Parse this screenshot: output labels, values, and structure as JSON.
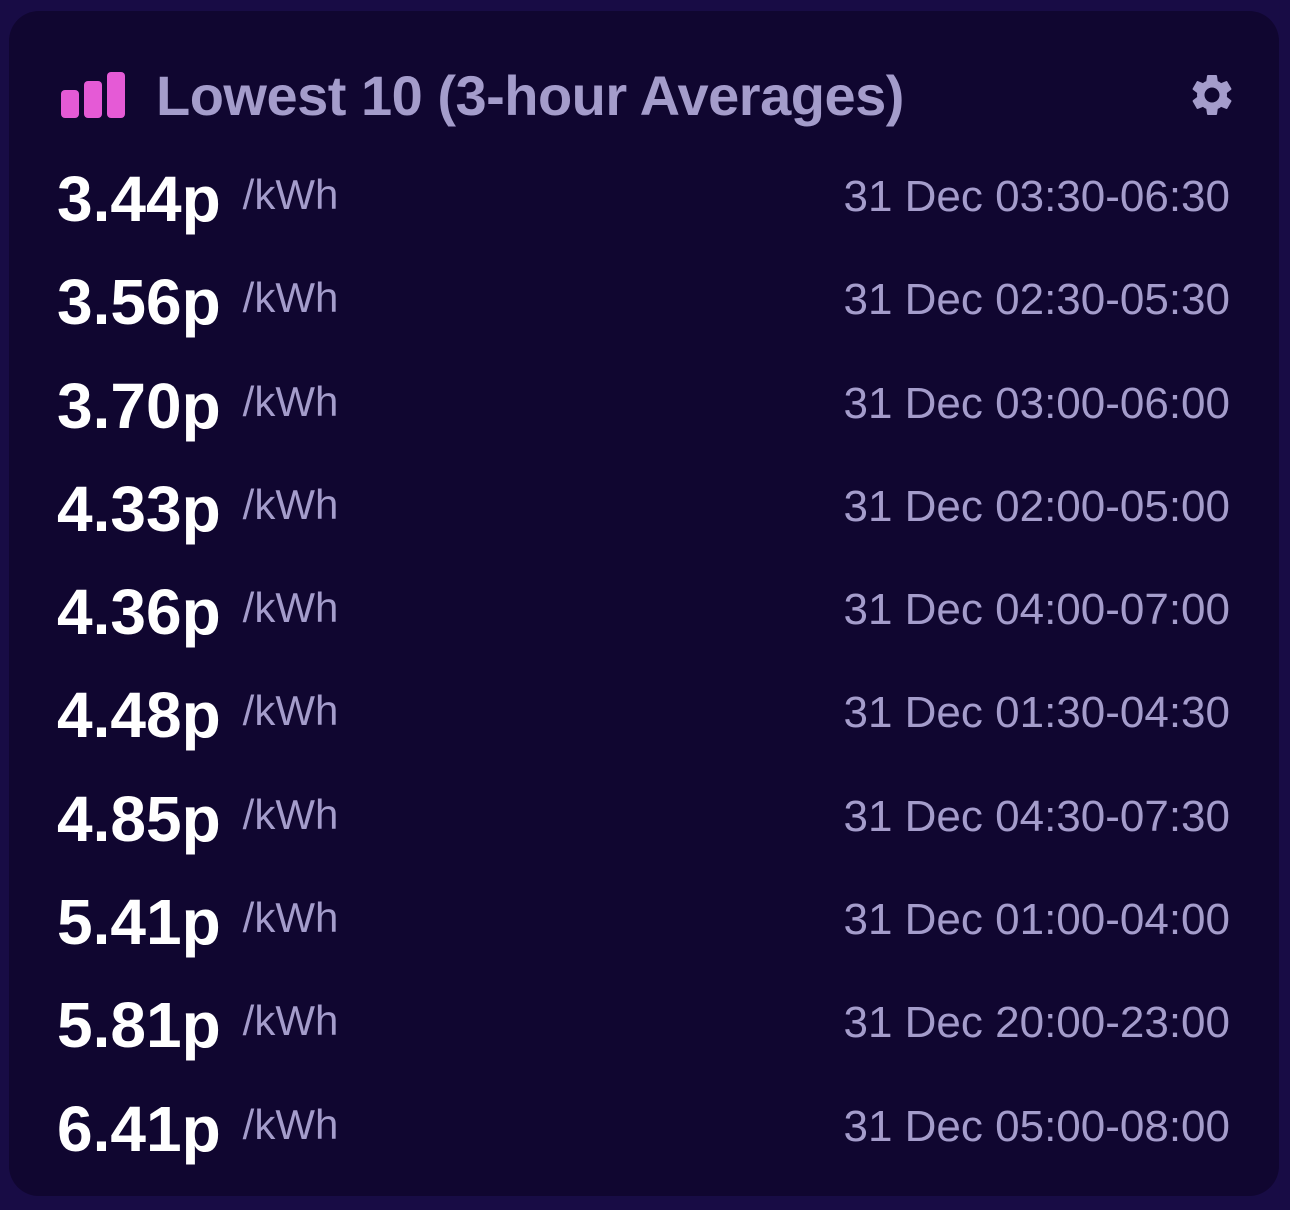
{
  "header": {
    "title": "Lowest 10 (3-hour Averages)",
    "icon": "bar-chart-icon",
    "settings_icon": "gear-icon"
  },
  "colors": {
    "background": "#180c45",
    "card": "#100630",
    "accent": "#e55ad6",
    "muted_text": "#a49ccb",
    "primary_text": "#ffffff"
  },
  "rows": [
    {
      "price": "3.44p",
      "unit": "/kWh",
      "time": "31 Dec 03:30-06:30"
    },
    {
      "price": "3.56p",
      "unit": "/kWh",
      "time": "31 Dec 02:30-05:30"
    },
    {
      "price": "3.70p",
      "unit": "/kWh",
      "time": "31 Dec 03:00-06:00"
    },
    {
      "price": "4.33p",
      "unit": "/kWh",
      "time": "31 Dec 02:00-05:00"
    },
    {
      "price": "4.36p",
      "unit": "/kWh",
      "time": "31 Dec 04:00-07:00"
    },
    {
      "price": "4.48p",
      "unit": "/kWh",
      "time": "31 Dec 01:30-04:30"
    },
    {
      "price": "4.85p",
      "unit": "/kWh",
      "time": "31 Dec 04:30-07:30"
    },
    {
      "price": "5.41p",
      "unit": "/kWh",
      "time": "31 Dec 01:00-04:00"
    },
    {
      "price": "5.81p",
      "unit": "/kWh",
      "time": "31 Dec 20:00-23:00"
    },
    {
      "price": "6.41p",
      "unit": "/kWh",
      "time": "31 Dec 05:00-08:00"
    }
  ]
}
